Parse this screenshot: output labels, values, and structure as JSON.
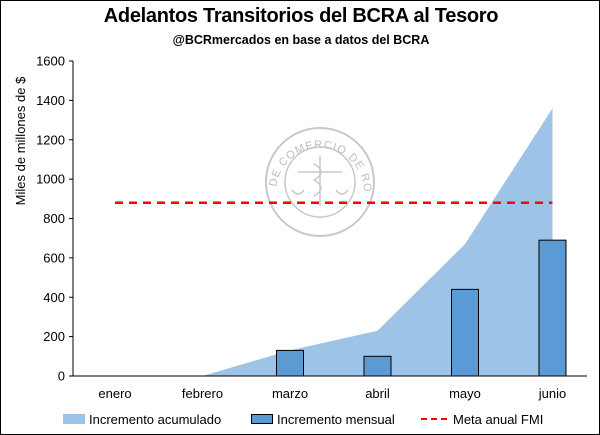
{
  "chart_data": {
    "type": "bar",
    "title": "Adelantos Transitorios del BCRA al Tesoro",
    "subtitle": "@BCRmercados en base a datos del BCRA",
    "ylabel": "Miles de millones de $",
    "xlabel": "",
    "categories": [
      "enero",
      "febrero",
      "marzo",
      "abril",
      "mayo",
      "junio"
    ],
    "ylim": [
      0,
      1600
    ],
    "yticks": [
      0,
      200,
      400,
      600,
      800,
      1000,
      1200,
      1400,
      1600
    ],
    "grid": false,
    "legend_position": "bottom",
    "series": [
      {
        "name": "Incremento acumulado",
        "kind": "area",
        "color": "#9dc3e6",
        "values": [
          0,
          0,
          130,
          230,
          670,
          1360
        ]
      },
      {
        "name": "Incremento mensual",
        "kind": "bar",
        "color": "#5b9bd5",
        "values": [
          0,
          0,
          130,
          100,
          440,
          690
        ]
      },
      {
        "name": "Meta anual FMI",
        "kind": "dashed-line",
        "color": "#ff0000",
        "values": [
          880,
          880,
          880,
          880,
          880,
          880
        ]
      }
    ]
  },
  "watermark": {
    "text": "BOLSA DE COMERCIO DE ROSARIO"
  }
}
